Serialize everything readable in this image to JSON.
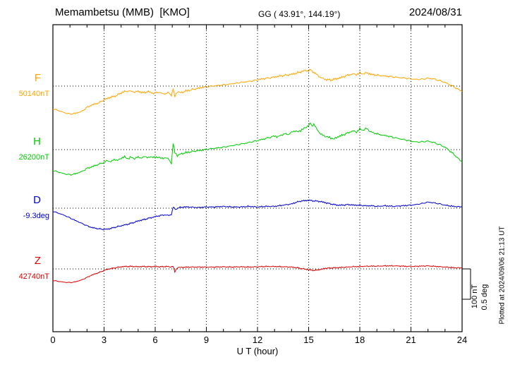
{
  "header": {
    "station": "Memambetsu (MMB)  [KMO]",
    "coords": "GG ( 43.91°, 144.19°)",
    "date": "2024/08/31"
  },
  "right_margin": {
    "scale_label_nt": "100 nT",
    "scale_label_deg": "0.5 deg",
    "plotted_at": "Plotted at 2024/09/06 21:13 UT"
  },
  "chart_data": {
    "type": "line",
    "title": "Memambetsu (MMB) [KMO] magnetogram 2024/08/31",
    "xlabel": "U T (hour)",
    "x_range": [
      0,
      24
    ],
    "x_ticks": [
      0,
      3,
      6,
      9,
      12,
      15,
      18,
      21,
      24
    ],
    "x_minor_tick": 1,
    "grid": "dotted",
    "legend_position": "left-margin",
    "scale_bar": {
      "nT": 100,
      "deg": 0.5
    },
    "series": [
      {
        "id": "F",
        "label": "F",
        "baseline_label": "50140nT",
        "baseline_value": 50140,
        "unit": "nT",
        "color": "#FFA500",
        "points": [
          [
            0,
            -75
          ],
          [
            0.3,
            -80
          ],
          [
            0.7,
            -88
          ],
          [
            1,
            -92
          ],
          [
            1.3,
            -90
          ],
          [
            1.7,
            -83
          ],
          [
            2,
            -70
          ],
          [
            2.3,
            -62
          ],
          [
            2.7,
            -55
          ],
          [
            3,
            -45
          ],
          [
            3.3,
            -38
          ],
          [
            3.7,
            -32
          ],
          [
            4,
            -22
          ],
          [
            4.2,
            -18
          ],
          [
            4.5,
            -16
          ],
          [
            4.8,
            -20
          ],
          [
            5,
            -17
          ],
          [
            5.3,
            -22
          ],
          [
            5.6,
            -18
          ],
          [
            5.9,
            -24
          ],
          [
            6.2,
            -20
          ],
          [
            6.5,
            -26
          ],
          [
            6.8,
            -22
          ],
          [
            6.95,
            -30
          ],
          [
            7.05,
            -8
          ],
          [
            7.15,
            -35
          ],
          [
            7.3,
            -18
          ],
          [
            7.5,
            -22
          ],
          [
            7.8,
            -16
          ],
          [
            8,
            -14
          ],
          [
            8.3,
            -10
          ],
          [
            8.7,
            -5
          ],
          [
            9,
            -2
          ],
          [
            9.3,
            0
          ],
          [
            9.7,
            2
          ],
          [
            10,
            4
          ],
          [
            10.3,
            6
          ],
          [
            10.7,
            9
          ],
          [
            11,
            12
          ],
          [
            11.3,
            14
          ],
          [
            11.7,
            17
          ],
          [
            12,
            21
          ],
          [
            12.3,
            24
          ],
          [
            12.7,
            27
          ],
          [
            13,
            30
          ],
          [
            13.3,
            33
          ],
          [
            13.7,
            36
          ],
          [
            14,
            39
          ],
          [
            14.3,
            43
          ],
          [
            14.6,
            48
          ],
          [
            14.8,
            52
          ],
          [
            15,
            50
          ],
          [
            15.1,
            55
          ],
          [
            15.25,
            48
          ],
          [
            15.4,
            42
          ],
          [
            15.6,
            32
          ],
          [
            15.8,
            26
          ],
          [
            16,
            22
          ],
          [
            16.3,
            20
          ],
          [
            16.7,
            25
          ],
          [
            17,
            30
          ],
          [
            17.3,
            36
          ],
          [
            17.6,
            40
          ],
          [
            17.8,
            38
          ],
          [
            18,
            43
          ],
          [
            18.2,
            40
          ],
          [
            18.4,
            44
          ],
          [
            18.7,
            38
          ],
          [
            19,
            36
          ],
          [
            19.3,
            34
          ],
          [
            19.7,
            32
          ],
          [
            20,
            30
          ],
          [
            20.3,
            28
          ],
          [
            20.7,
            26
          ],
          [
            21,
            24
          ],
          [
            21.3,
            22
          ],
          [
            21.7,
            23
          ],
          [
            22,
            26
          ],
          [
            22.3,
            24
          ],
          [
            22.7,
            18
          ],
          [
            23,
            12
          ],
          [
            23.3,
            4
          ],
          [
            23.7,
            -8
          ],
          [
            24,
            -18
          ]
        ]
      },
      {
        "id": "H",
        "label": "H",
        "baseline_label": "26200nT",
        "baseline_value": 26200,
        "unit": "nT",
        "color": "#00CC00",
        "points": [
          [
            0,
            -68
          ],
          [
            0.3,
            -74
          ],
          [
            0.7,
            -80
          ],
          [
            1,
            -83
          ],
          [
            1.3,
            -80
          ],
          [
            1.7,
            -72
          ],
          [
            2,
            -62
          ],
          [
            2.3,
            -56
          ],
          [
            2.7,
            -48
          ],
          [
            3,
            -42
          ],
          [
            3.2,
            -36
          ],
          [
            3.4,
            -40
          ],
          [
            3.6,
            -32
          ],
          [
            3.8,
            -36
          ],
          [
            4,
            -28
          ],
          [
            4.2,
            -24
          ],
          [
            4.4,
            -30
          ],
          [
            4.6,
            -25
          ],
          [
            4.8,
            -30
          ],
          [
            5,
            -24
          ],
          [
            5.2,
            -28
          ],
          [
            5.4,
            -22
          ],
          [
            5.6,
            -27
          ],
          [
            5.8,
            -23
          ],
          [
            6,
            -27
          ],
          [
            6.2,
            -24
          ],
          [
            6.4,
            -30
          ],
          [
            6.6,
            -26
          ],
          [
            6.8,
            -32
          ],
          [
            6.95,
            -45
          ],
          [
            7.05,
            22
          ],
          [
            7.15,
            -10
          ],
          [
            7.3,
            -20
          ],
          [
            7.5,
            -14
          ],
          [
            7.8,
            -10
          ],
          [
            8,
            -8
          ],
          [
            8.3,
            -5
          ],
          [
            8.7,
            -2
          ],
          [
            9,
            1
          ],
          [
            9.3,
            3
          ],
          [
            9.7,
            6
          ],
          [
            10,
            8
          ],
          [
            10.3,
            11
          ],
          [
            10.7,
            15
          ],
          [
            11,
            18
          ],
          [
            11.3,
            21
          ],
          [
            11.7,
            26
          ],
          [
            12,
            30
          ],
          [
            12.3,
            34
          ],
          [
            12.7,
            40
          ],
          [
            13,
            45
          ],
          [
            13.2,
            42
          ],
          [
            13.4,
            48
          ],
          [
            13.6,
            52
          ],
          [
            13.8,
            50
          ],
          [
            14,
            57
          ],
          [
            14.2,
            62
          ],
          [
            14.4,
            58
          ],
          [
            14.6,
            66
          ],
          [
            14.8,
            72
          ],
          [
            15,
            80
          ],
          [
            15.1,
            88
          ],
          [
            15.2,
            78
          ],
          [
            15.3,
            85
          ],
          [
            15.5,
            65
          ],
          [
            15.7,
            52
          ],
          [
            15.9,
            45
          ],
          [
            16.1,
            42
          ],
          [
            16.3,
            38
          ],
          [
            16.5,
            35
          ],
          [
            16.7,
            42
          ],
          [
            17,
            48
          ],
          [
            17.3,
            55
          ],
          [
            17.6,
            62
          ],
          [
            17.8,
            58
          ],
          [
            18,
            68
          ],
          [
            18.2,
            64
          ],
          [
            18.4,
            70
          ],
          [
            18.6,
            60
          ],
          [
            18.8,
            55
          ],
          [
            19,
            52
          ],
          [
            19.3,
            48
          ],
          [
            19.7,
            44
          ],
          [
            20,
            40
          ],
          [
            20.3,
            36
          ],
          [
            20.7,
            32
          ],
          [
            21,
            28
          ],
          [
            21.3,
            25
          ],
          [
            21.7,
            26
          ],
          [
            22,
            28
          ],
          [
            22.3,
            24
          ],
          [
            22.7,
            16
          ],
          [
            23,
            8
          ],
          [
            23.3,
            -5
          ],
          [
            23.7,
            -25
          ],
          [
            24,
            -42
          ]
        ]
      },
      {
        "id": "D",
        "label": "D",
        "baseline_label": "-9.3deg",
        "baseline_value": -9.3,
        "unit": "deg",
        "color": "#0000CD",
        "points": [
          [
            0,
            -0.05
          ],
          [
            0.3,
            -0.08
          ],
          [
            0.7,
            -0.12
          ],
          [
            1,
            -0.16
          ],
          [
            1.3,
            -0.2
          ],
          [
            1.7,
            -0.25
          ],
          [
            2,
            -0.29
          ],
          [
            2.3,
            -0.32
          ],
          [
            2.7,
            -0.34
          ],
          [
            3,
            -0.35
          ],
          [
            3.3,
            -0.34
          ],
          [
            3.7,
            -0.31
          ],
          [
            4,
            -0.29
          ],
          [
            4.3,
            -0.27
          ],
          [
            4.7,
            -0.24
          ],
          [
            5,
            -0.21
          ],
          [
            5.3,
            -0.19
          ],
          [
            5.7,
            -0.16
          ],
          [
            6,
            -0.14
          ],
          [
            6.3,
            -0.12
          ],
          [
            6.6,
            -0.11
          ],
          [
            6.8,
            -0.12
          ],
          [
            6.95,
            -0.1
          ],
          [
            7.05,
            0.02
          ],
          [
            7.2,
            -0.02
          ],
          [
            7.4,
            0.01
          ],
          [
            7.7,
            0.02
          ],
          [
            8,
            0.02
          ],
          [
            8.5,
            0.01
          ],
          [
            9,
            0.02
          ],
          [
            9.5,
            0.02
          ],
          [
            10,
            0.03
          ],
          [
            10.5,
            0.02
          ],
          [
            11,
            0.02
          ],
          [
            11.5,
            0.03
          ],
          [
            12,
            0.02
          ],
          [
            12.5,
            0.03
          ],
          [
            13,
            0.03
          ],
          [
            13.5,
            0.05
          ],
          [
            14,
            0.07
          ],
          [
            14.3,
            0.1
          ],
          [
            14.6,
            0.12
          ],
          [
            15,
            0.13
          ],
          [
            15.3,
            0.12
          ],
          [
            15.7,
            0.11
          ],
          [
            16,
            0.09
          ],
          [
            16.3,
            0.07
          ],
          [
            16.7,
            0.05
          ],
          [
            17,
            0.05
          ],
          [
            17.3,
            0.06
          ],
          [
            17.7,
            0.05
          ],
          [
            18,
            0.05
          ],
          [
            18.3,
            0.04
          ],
          [
            18.7,
            0.04
          ],
          [
            19,
            0.03
          ],
          [
            19.5,
            0.04
          ],
          [
            20,
            0.03
          ],
          [
            20.5,
            0.04
          ],
          [
            21,
            0.05
          ],
          [
            21.3,
            0.06
          ],
          [
            21.7,
            0.08
          ],
          [
            22,
            0.1
          ],
          [
            22.3,
            0.09
          ],
          [
            22.7,
            0.07
          ],
          [
            23,
            0.05
          ],
          [
            23.5,
            0.03
          ],
          [
            24,
            0.02
          ]
        ]
      },
      {
        "id": "Z",
        "label": "Z",
        "baseline_label": "42740nT",
        "baseline_value": 42740,
        "unit": "nT",
        "color": "#DD0000",
        "points": [
          [
            0,
            -38
          ],
          [
            0.3,
            -41
          ],
          [
            0.7,
            -44
          ],
          [
            1,
            -45
          ],
          [
            1.3,
            -43
          ],
          [
            1.7,
            -36
          ],
          [
            2,
            -28
          ],
          [
            2.3,
            -20
          ],
          [
            2.7,
            -12
          ],
          [
            3,
            -5
          ],
          [
            3.3,
            0
          ],
          [
            3.7,
            4
          ],
          [
            4,
            7
          ],
          [
            4.3,
            8
          ],
          [
            4.7,
            8
          ],
          [
            5,
            7
          ],
          [
            5.3,
            8
          ],
          [
            5.7,
            7
          ],
          [
            6,
            8
          ],
          [
            6.3,
            7
          ],
          [
            6.7,
            8
          ],
          [
            6.9,
            6
          ],
          [
            7.05,
            9
          ],
          [
            7.15,
            -10
          ],
          [
            7.3,
            4
          ],
          [
            7.5,
            5
          ],
          [
            8,
            6
          ],
          [
            8.5,
            6
          ],
          [
            9,
            6
          ],
          [
            9.5,
            6
          ],
          [
            10,
            7
          ],
          [
            10.5,
            6
          ],
          [
            11,
            7
          ],
          [
            11.5,
            6
          ],
          [
            12,
            7
          ],
          [
            12.5,
            8
          ],
          [
            13,
            8
          ],
          [
            13.5,
            7
          ],
          [
            14,
            6
          ],
          [
            14.3,
            4
          ],
          [
            14.7,
            0
          ],
          [
            15,
            -3
          ],
          [
            15.3,
            -5
          ],
          [
            15.6,
            -3
          ],
          [
            16,
            2
          ],
          [
            16.3,
            3
          ],
          [
            16.7,
            4
          ],
          [
            17,
            5
          ],
          [
            17.5,
            7
          ],
          [
            18,
            8
          ],
          [
            18.5,
            9
          ],
          [
            19,
            9
          ],
          [
            19.5,
            10
          ],
          [
            20,
            10
          ],
          [
            20.5,
            9
          ],
          [
            21,
            8
          ],
          [
            21.5,
            9
          ],
          [
            22,
            10
          ],
          [
            22.5,
            8
          ],
          [
            23,
            6
          ],
          [
            23.5,
            4
          ],
          [
            24,
            3
          ]
        ]
      }
    ]
  }
}
